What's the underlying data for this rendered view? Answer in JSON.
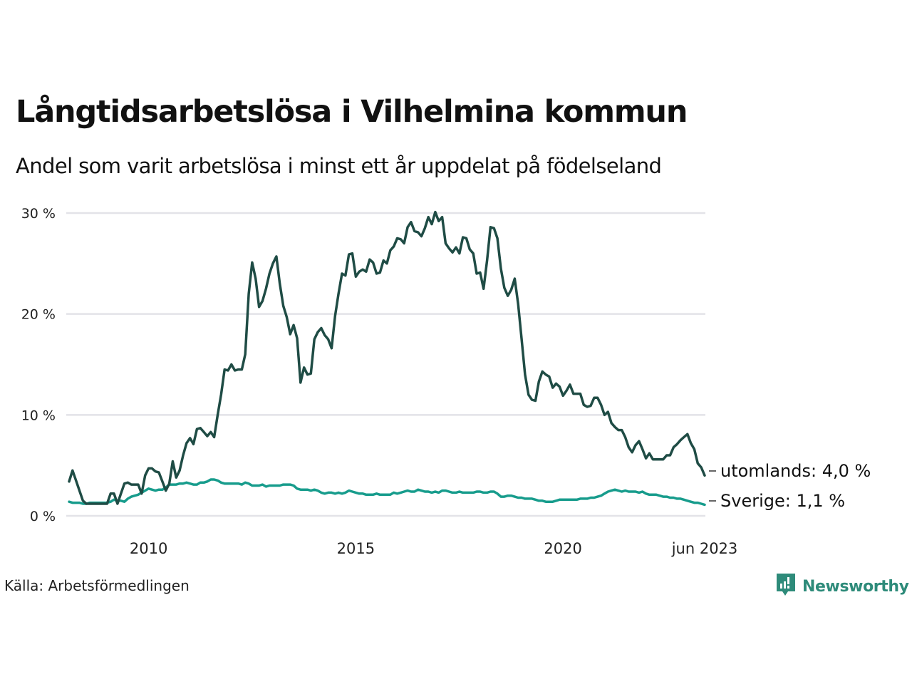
{
  "chart_data": {
    "type": "line",
    "title": "Långtidsarbetslösa i Vilhelmina kommun",
    "subtitle": "Andel som varit arbetslösa i minst ett år uppdelat på födelseland",
    "xlabel": "",
    "ylabel": "",
    "start": "2008-02",
    "end": "2023-06",
    "frequency": "monthly",
    "ylim": [
      0,
      30
    ],
    "xlim_years": [
      2008.08,
      2023.42
    ],
    "grid": true,
    "yticks": [
      {
        "value": 0,
        "label": "0 %"
      },
      {
        "value": 10,
        "label": "10 %"
      },
      {
        "value": 20,
        "label": "20 %"
      },
      {
        "value": 30,
        "label": "30 %"
      }
    ],
    "xticks": [
      {
        "value": 2010.0,
        "label": "2010"
      },
      {
        "value": 2015.0,
        "label": "2015"
      },
      {
        "value": 2020.0,
        "label": "2020"
      },
      {
        "value": 2023.42,
        "label": "jun 2023"
      }
    ],
    "series": [
      {
        "name": "utomlands",
        "end_label": "utomlands: 4,0 %",
        "color": "#1f4c45",
        "values": [
          3.4,
          4.5,
          3.5,
          2.5,
          1.5,
          1.2,
          1.2,
          1.2,
          1.2,
          1.2,
          1.2,
          1.2,
          2.2,
          2.2,
          1.2,
          2.2,
          3.2,
          3.3,
          3.1,
          3.1,
          3.1,
          2.2,
          4.0,
          4.7,
          4.7,
          4.4,
          4.3,
          3.4,
          2.5,
          3.2,
          5.4,
          3.8,
          4.5,
          6.0,
          7.2,
          7.7,
          7.1,
          8.6,
          8.7,
          8.3,
          7.9,
          8.3,
          7.8,
          10.0,
          12.0,
          14.5,
          14.4,
          15.0,
          14.4,
          14.5,
          14.5,
          16.0,
          22.0,
          25.1,
          23.5,
          20.7,
          21.3,
          22.5,
          24.0,
          25.0,
          25.7,
          23.0,
          20.8,
          19.7,
          18.0,
          18.9,
          17.6,
          13.2,
          14.7,
          14.0,
          14.1,
          17.5,
          18.2,
          18.6,
          17.9,
          17.5,
          16.6,
          19.8,
          22.0,
          24.0,
          23.8,
          25.9,
          26.0,
          23.7,
          24.2,
          24.4,
          24.2,
          25.4,
          25.1,
          24.0,
          24.1,
          25.3,
          25.0,
          26.3,
          26.7,
          27.5,
          27.4,
          27.0,
          28.6,
          29.1,
          28.2,
          28.1,
          27.7,
          28.5,
          29.6,
          28.9,
          30.1,
          29.2,
          29.6,
          27.0,
          26.5,
          26.1,
          26.6,
          26.0,
          27.6,
          27.5,
          26.4,
          26.0,
          24.0,
          24.1,
          22.5,
          25.3,
          28.6,
          28.5,
          27.5,
          24.5,
          22.6,
          21.8,
          22.4,
          23.5,
          21.0,
          17.5,
          14.0,
          12.0,
          11.5,
          11.4,
          13.3,
          14.3,
          14.0,
          13.8,
          12.7,
          13.1,
          12.8,
          11.9,
          12.4,
          13.0,
          12.1,
          12.1,
          12.1,
          11.0,
          10.8,
          10.9,
          11.7,
          11.7,
          11.0,
          10.0,
          10.3,
          9.2,
          8.8,
          8.5,
          8.5,
          7.8,
          6.8,
          6.3,
          7.0,
          7.4,
          6.6,
          5.7,
          6.2,
          5.6,
          5.6,
          5.6,
          5.6,
          6.0,
          6.0,
          6.8,
          7.1,
          7.5,
          7.8,
          8.1,
          7.2,
          6.6,
          5.2,
          4.8,
          4.0
        ]
      },
      {
        "name": "Sverige",
        "end_label": "Sverige: 1,1 %",
        "color": "#179c8c",
        "values": [
          1.4,
          1.3,
          1.3,
          1.3,
          1.2,
          1.2,
          1.3,
          1.3,
          1.3,
          1.3,
          1.3,
          1.3,
          1.4,
          1.6,
          1.5,
          1.5,
          1.4,
          1.7,
          1.9,
          2.0,
          2.1,
          2.3,
          2.5,
          2.7,
          2.6,
          2.5,
          2.6,
          2.6,
          2.8,
          3.1,
          3.1,
          3.1,
          3.2,
          3.2,
          3.3,
          3.2,
          3.1,
          3.1,
          3.3,
          3.3,
          3.4,
          3.6,
          3.6,
          3.5,
          3.3,
          3.2,
          3.2,
          3.2,
          3.2,
          3.2,
          3.1,
          3.3,
          3.2,
          3.0,
          3.0,
          3.0,
          3.1,
          2.9,
          3.0,
          3.0,
          3.0,
          3.0,
          3.1,
          3.1,
          3.1,
          3.0,
          2.7,
          2.6,
          2.6,
          2.6,
          2.5,
          2.6,
          2.5,
          2.3,
          2.2,
          2.3,
          2.3,
          2.2,
          2.3,
          2.2,
          2.3,
          2.5,
          2.4,
          2.3,
          2.2,
          2.2,
          2.1,
          2.1,
          2.1,
          2.2,
          2.1,
          2.1,
          2.1,
          2.1,
          2.3,
          2.2,
          2.3,
          2.4,
          2.5,
          2.4,
          2.4,
          2.6,
          2.5,
          2.4,
          2.4,
          2.3,
          2.4,
          2.3,
          2.5,
          2.5,
          2.4,
          2.3,
          2.3,
          2.4,
          2.3,
          2.3,
          2.3,
          2.3,
          2.4,
          2.4,
          2.3,
          2.3,
          2.4,
          2.4,
          2.2,
          1.9,
          1.9,
          2.0,
          2.0,
          1.9,
          1.8,
          1.8,
          1.7,
          1.7,
          1.7,
          1.6,
          1.5,
          1.5,
          1.4,
          1.4,
          1.4,
          1.5,
          1.6,
          1.6,
          1.6,
          1.6,
          1.6,
          1.6,
          1.7,
          1.7,
          1.7,
          1.8,
          1.8,
          1.9,
          2.0,
          2.2,
          2.4,
          2.5,
          2.6,
          2.5,
          2.4,
          2.5,
          2.4,
          2.4,
          2.4,
          2.3,
          2.4,
          2.2,
          2.1,
          2.1,
          2.1,
          2.0,
          1.9,
          1.9,
          1.8,
          1.8,
          1.7,
          1.7,
          1.6,
          1.5,
          1.4,
          1.3,
          1.3,
          1.2,
          1.1
        ]
      }
    ]
  },
  "footer": {
    "source": "Källa: Arbetsförmedlingen",
    "brand": "Newsworthy",
    "brand_color": "#2e8b7a",
    "brand_icon": "chart-speech-bubble-icon"
  }
}
